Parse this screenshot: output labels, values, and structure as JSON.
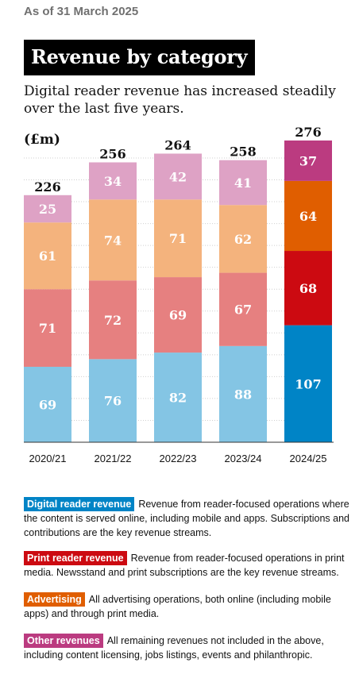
{
  "header": {
    "as_of": "As of 31 March 2025",
    "title": "Revenue by category",
    "subtitle": "Digital reader revenue has increased steadily over the last five years."
  },
  "chart_data": {
    "type": "bar",
    "stacked": true,
    "unit_label": "(£m)",
    "categories": [
      "2020/21",
      "2021/22",
      "2022/23",
      "2023/24",
      "2024/25"
    ],
    "totals": [
      226,
      256,
      264,
      258,
      276
    ],
    "series": [
      {
        "name": "Digital reader revenue",
        "values": [
          69,
          76,
          82,
          88,
          107
        ],
        "faded_color": "#84c5e4",
        "color": "#0084c6"
      },
      {
        "name": "Print reader revenue",
        "values": [
          71,
          72,
          69,
          67,
          68
        ],
        "faded_color": "#e68080",
        "color": "#cc0a11"
      },
      {
        "name": "Advertising",
        "values": [
          61,
          74,
          71,
          62,
          64
        ],
        "faded_color": "#f4b37d",
        "color": "#e05e00"
      },
      {
        "name": "Other revenues",
        "values": [
          25,
          34,
          42,
          41,
          37
        ],
        "faded_color": "#dea2c5",
        "color": "#bb3b80"
      }
    ],
    "highlight_category": "2024/25",
    "ylim": [
      0,
      280
    ],
    "grid": true,
    "xlabel": "",
    "ylabel": ""
  },
  "legend": [
    {
      "tag": "Digital reader revenue",
      "color": "#0084c6",
      "text": "Revenue from reader-focused operations where the content is served online, including mobile and apps. Subscriptions and contributions are the key revenue streams."
    },
    {
      "tag": "Print reader revenue",
      "color": "#cc0a11",
      "text": "Revenue from reader-focused operations in print media. Newsstand and print subscriptions are the key revenue streams."
    },
    {
      "tag": "Advertising",
      "color": "#e05e00",
      "text": "All advertising operations, both online (including mobile apps) and through print media."
    },
    {
      "tag": "Other revenues",
      "color": "#bb3b80",
      "text": "All remaining revenues not included in the above, including content licensing, jobs listings, events and philanthropic."
    }
  ]
}
